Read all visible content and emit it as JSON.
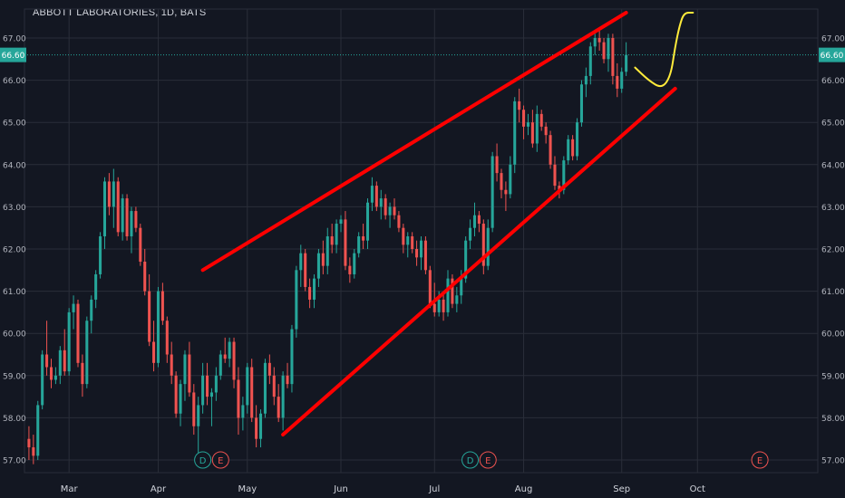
{
  "title": "ABBOTT LABORATORIES, 1D, BATS",
  "chart_data": {
    "type": "candlestick",
    "ylim": [
      56.7,
      67.3
    ],
    "y_ticks": [
      57,
      58,
      59,
      60,
      61,
      62,
      63,
      64,
      65,
      66,
      67
    ],
    "y_tick_labels": [
      "57.00",
      "58.00",
      "59.00",
      "60.00",
      "61.00",
      "62.00",
      "63.00",
      "64.00",
      "65.00",
      "66.00",
      "67.00"
    ],
    "last_price": 66.6,
    "last_price_label": "66.60",
    "x_labels": [
      {
        "label": "Mar",
        "day": 9
      },
      {
        "label": "Apr",
        "day": 29
      },
      {
        "label": "May",
        "day": 49
      },
      {
        "label": "Jun",
        "day": 70
      },
      {
        "label": "Jul",
        "day": 91
      },
      {
        "label": "Aug",
        "day": 111
      },
      {
        "label": "Sep",
        "day": 133
      },
      {
        "label": "Oct",
        "day": 150
      }
    ],
    "x_range": [
      -1,
      177
    ],
    "events": [
      {
        "label": "D",
        "day": 39,
        "color": "#26a69a"
      },
      {
        "label": "E",
        "day": 43,
        "color": "#ef5350"
      },
      {
        "label": "D",
        "day": 99,
        "color": "#26a69a"
      },
      {
        "label": "E",
        "day": 103,
        "color": "#ef5350"
      },
      {
        "label": "E",
        "day": 164,
        "color": "#ef5350"
      }
    ],
    "candles": [
      [
        57.5,
        57.8,
        57.0,
        57.3
      ],
      [
        57.3,
        57.6,
        56.9,
        57.1
      ],
      [
        57.1,
        58.4,
        57.0,
        58.3
      ],
      [
        58.3,
        59.6,
        58.2,
        59.5
      ],
      [
        59.5,
        60.3,
        59.0,
        59.2
      ],
      [
        59.2,
        59.4,
        58.7,
        58.9
      ],
      [
        58.9,
        59.2,
        58.8,
        59.0
      ],
      [
        59.0,
        59.7,
        58.8,
        59.6
      ],
      [
        59.6,
        60.1,
        59.0,
        59.1
      ],
      [
        59.1,
        60.6,
        59.0,
        60.5
      ],
      [
        60.5,
        60.9,
        60.1,
        60.7
      ],
      [
        60.7,
        60.8,
        59.2,
        59.3
      ],
      [
        59.3,
        59.5,
        58.5,
        58.8
      ],
      [
        58.8,
        60.4,
        58.7,
        60.3
      ],
      [
        60.3,
        60.9,
        60.0,
        60.8
      ],
      [
        60.8,
        61.5,
        60.6,
        61.4
      ],
      [
        61.4,
        62.4,
        61.3,
        62.3
      ],
      [
        62.3,
        63.7,
        62.0,
        63.6
      ],
      [
        63.6,
        63.8,
        62.8,
        63.0
      ],
      [
        63.0,
        63.9,
        62.5,
        63.6
      ],
      [
        63.6,
        63.7,
        62.3,
        62.4
      ],
      [
        62.4,
        63.3,
        62.2,
        63.2
      ],
      [
        63.2,
        63.3,
        62.2,
        62.3
      ],
      [
        62.3,
        63.0,
        61.9,
        62.9
      ],
      [
        62.9,
        63.0,
        62.4,
        62.5
      ],
      [
        62.5,
        62.6,
        61.6,
        61.7
      ],
      [
        61.7,
        62.0,
        60.9,
        61.0
      ],
      [
        61.0,
        61.4,
        59.7,
        59.8
      ],
      [
        59.8,
        60.3,
        59.1,
        59.3
      ],
      [
        59.3,
        61.1,
        59.2,
        61.0
      ],
      [
        61.0,
        61.2,
        60.2,
        60.3
      ],
      [
        60.3,
        60.4,
        59.3,
        59.5
      ],
      [
        59.5,
        59.8,
        58.8,
        59.0
      ],
      [
        59.0,
        59.1,
        58.0,
        58.1
      ],
      [
        58.1,
        58.9,
        57.8,
        58.8
      ],
      [
        58.8,
        59.6,
        58.4,
        59.5
      ],
      [
        59.5,
        59.8,
        58.5,
        58.6
      ],
      [
        58.6,
        58.8,
        57.6,
        57.8
      ],
      [
        57.8,
        58.5,
        57.0,
        58.3
      ],
      [
        58.3,
        59.3,
        58.1,
        59.0
      ],
      [
        59.0,
        59.3,
        58.3,
        58.5
      ],
      [
        58.5,
        58.7,
        57.8,
        58.6
      ],
      [
        58.6,
        59.2,
        58.4,
        59.0
      ],
      [
        59.0,
        59.6,
        58.9,
        59.5
      ],
      [
        59.5,
        59.9,
        59.3,
        59.4
      ],
      [
        59.4,
        59.9,
        59.2,
        59.8
      ],
      [
        59.8,
        59.9,
        58.7,
        58.9
      ],
      [
        58.9,
        59.2,
        57.6,
        58.0
      ],
      [
        58.0,
        58.5,
        57.7,
        58.3
      ],
      [
        58.3,
        59.3,
        58.1,
        59.2
      ],
      [
        59.2,
        59.4,
        57.9,
        58.0
      ],
      [
        58.0,
        58.3,
        57.3,
        57.5
      ],
      [
        57.5,
        58.2,
        57.3,
        58.1
      ],
      [
        58.1,
        59.4,
        58.0,
        59.3
      ],
      [
        59.3,
        59.5,
        58.8,
        59.0
      ],
      [
        59.0,
        59.2,
        58.3,
        58.5
      ],
      [
        58.5,
        58.8,
        57.9,
        58.0
      ],
      [
        58.0,
        59.1,
        57.7,
        59.0
      ],
      [
        59.0,
        59.3,
        58.7,
        58.8
      ],
      [
        58.8,
        60.2,
        58.6,
        60.1
      ],
      [
        60.1,
        61.6,
        59.9,
        61.5
      ],
      [
        61.5,
        62.1,
        61.1,
        61.9
      ],
      [
        61.9,
        62.0,
        61.0,
        61.1
      ],
      [
        61.1,
        61.3,
        60.6,
        60.8
      ],
      [
        60.8,
        61.4,
        60.6,
        61.3
      ],
      [
        61.3,
        62.0,
        61.1,
        61.9
      ],
      [
        61.9,
        62.2,
        61.4,
        61.6
      ],
      [
        61.6,
        62.5,
        61.4,
        62.3
      ],
      [
        62.3,
        62.6,
        61.9,
        62.1
      ],
      [
        62.1,
        62.7,
        61.9,
        62.6
      ],
      [
        62.6,
        62.8,
        62.4,
        62.7
      ],
      [
        62.7,
        62.9,
        61.5,
        61.6
      ],
      [
        61.6,
        61.8,
        61.2,
        61.4
      ],
      [
        61.4,
        62.0,
        61.3,
        61.9
      ],
      [
        61.9,
        62.4,
        61.8,
        62.3
      ],
      [
        62.3,
        62.6,
        62.0,
        62.2
      ],
      [
        62.2,
        63.2,
        62.0,
        63.1
      ],
      [
        63.1,
        63.7,
        62.9,
        63.5
      ],
      [
        63.5,
        63.6,
        62.9,
        63.0
      ],
      [
        63.0,
        63.4,
        62.7,
        63.2
      ],
      [
        63.2,
        63.3,
        62.7,
        62.8
      ],
      [
        62.8,
        63.1,
        62.5,
        63.0
      ],
      [
        63.0,
        63.2,
        62.7,
        62.8
      ],
      [
        62.8,
        62.9,
        62.4,
        62.5
      ],
      [
        62.5,
        62.6,
        61.9,
        62.1
      ],
      [
        62.1,
        62.4,
        61.8,
        62.3
      ],
      [
        62.3,
        62.4,
        61.9,
        62.0
      ],
      [
        62.0,
        62.2,
        61.6,
        61.8
      ],
      [
        61.8,
        62.3,
        61.5,
        62.2
      ],
      [
        62.2,
        62.3,
        61.4,
        61.5
      ],
      [
        61.5,
        61.6,
        60.6,
        60.7
      ],
      [
        60.7,
        61.2,
        60.4,
        60.5
      ],
      [
        60.5,
        61.0,
        60.4,
        60.8
      ],
      [
        60.8,
        61.0,
        60.3,
        60.5
      ],
      [
        60.5,
        61.5,
        60.4,
        61.3
      ],
      [
        61.3,
        61.4,
        60.6,
        60.7
      ],
      [
        60.7,
        61.1,
        60.5,
        60.9
      ],
      [
        60.9,
        61.5,
        60.7,
        61.3
      ],
      [
        61.3,
        62.3,
        61.2,
        62.2
      ],
      [
        62.2,
        62.7,
        62.0,
        62.5
      ],
      [
        62.5,
        63.1,
        62.3,
        62.8
      ],
      [
        62.8,
        62.9,
        62.4,
        62.6
      ],
      [
        62.6,
        62.7,
        61.4,
        61.6
      ],
      [
        61.6,
        62.7,
        61.5,
        62.5
      ],
      [
        62.5,
        64.3,
        62.4,
        64.2
      ],
      [
        64.2,
        64.5,
        63.6,
        63.8
      ],
      [
        63.8,
        63.9,
        63.2,
        63.4
      ],
      [
        63.4,
        63.6,
        62.9,
        63.3
      ],
      [
        63.3,
        64.2,
        63.2,
        64.0
      ],
      [
        64.0,
        65.6,
        63.8,
        65.5
      ],
      [
        65.5,
        65.8,
        65.0,
        65.3
      ],
      [
        65.3,
        65.4,
        64.6,
        64.9
      ],
      [
        64.9,
        65.2,
        64.7,
        65.0
      ],
      [
        65.0,
        65.3,
        64.4,
        64.5
      ],
      [
        64.5,
        65.4,
        64.3,
        65.2
      ],
      [
        65.2,
        65.3,
        64.8,
        64.9
      ],
      [
        64.9,
        65.0,
        64.5,
        64.7
      ],
      [
        64.7,
        64.8,
        63.9,
        64.0
      ],
      [
        64.0,
        64.2,
        63.4,
        63.5
      ],
      [
        63.5,
        63.6,
        63.2,
        63.4
      ],
      [
        63.4,
        64.2,
        63.3,
        64.1
      ],
      [
        64.1,
        64.7,
        64.0,
        64.6
      ],
      [
        64.6,
        64.7,
        64.1,
        64.2
      ],
      [
        64.2,
        65.1,
        64.1,
        65.0
      ],
      [
        65.0,
        66.0,
        64.9,
        65.9
      ],
      [
        65.9,
        66.3,
        65.6,
        66.1
      ],
      [
        66.1,
        66.9,
        65.9,
        66.8
      ],
      [
        66.8,
        67.1,
        66.6,
        67.0
      ],
      [
        67.0,
        67.2,
        66.7,
        66.9
      ],
      [
        66.9,
        67.0,
        66.4,
        66.5
      ],
      [
        66.5,
        67.1,
        66.2,
        67.0
      ],
      [
        67.0,
        67.1,
        65.9,
        66.1
      ],
      [
        66.1,
        66.4,
        65.6,
        65.8
      ],
      [
        65.8,
        66.3,
        65.7,
        66.2
      ],
      [
        66.2,
        66.9,
        66.1,
        66.6
      ]
    ],
    "upper_trendline": {
      "start": {
        "day": 39,
        "price": 61.5
      },
      "end": {
        "day": 134,
        "price": 67.6
      },
      "color": "#ff0000"
    },
    "lower_trendline": {
      "start": {
        "day": 57,
        "price": 57.6
      },
      "end": {
        "day": 145,
        "price": 65.8
      },
      "color": "#ff0000"
    },
    "projection": {
      "color": "#ffeb3b",
      "points": [
        {
          "day": 136,
          "price": 66.3
        },
        {
          "day": 139,
          "price": 66.0
        },
        {
          "day": 142,
          "price": 65.8
        },
        {
          "day": 144,
          "price": 66.1
        },
        {
          "day": 145,
          "price": 66.8
        },
        {
          "day": 146,
          "price": 67.3
        },
        {
          "day": 147,
          "price": 67.6
        },
        {
          "day": 149,
          "price": 67.6
        }
      ]
    },
    "colors": {
      "up": "#26a69a",
      "down": "#ef5350",
      "grid": "#2a2e39",
      "text": "#b2b5be",
      "background": "#131722"
    }
  }
}
